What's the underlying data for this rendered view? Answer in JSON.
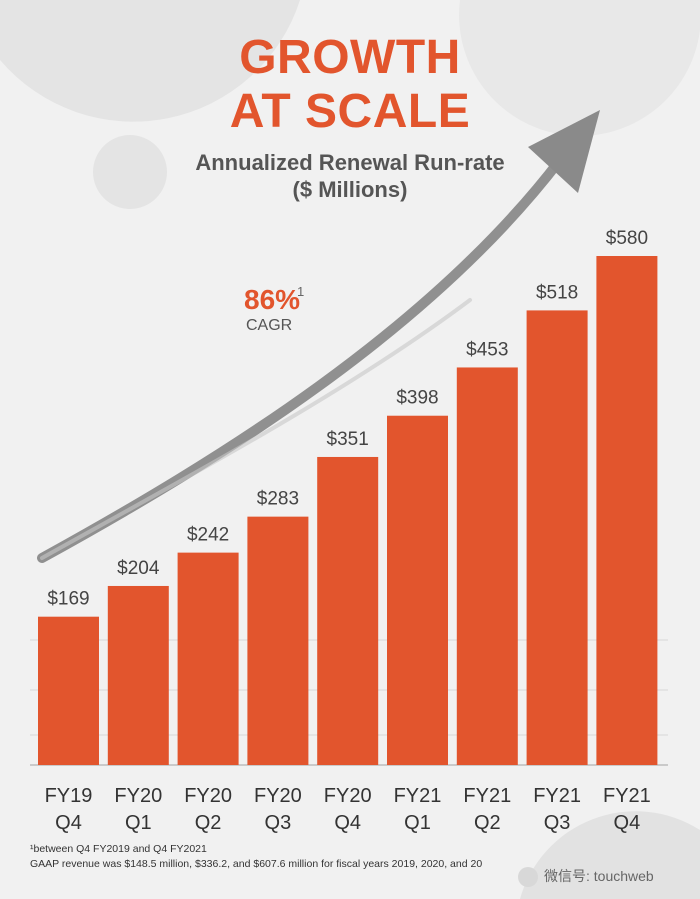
{
  "header": {
    "title_line1": "GROWTH",
    "title_line2": "AT SCALE",
    "subtitle_line1": "Annualized Renewal Run-rate",
    "subtitle_line2": "($ Millions)"
  },
  "annotation": {
    "cagr_value": "86%",
    "cagr_superscript": "1",
    "cagr_label": "CAGR"
  },
  "footnotes": {
    "line1": "¹between Q4 FY2019 and Q4 FY2021",
    "line2": "GAAP revenue was $148.5 million, $336.2, and $607.6 million for fiscal years 2019, 2020, and 20"
  },
  "watermark": {
    "text": "微信号: touchweb"
  },
  "colors": {
    "bar": "#e2552d",
    "accent": "#e2552d",
    "background": "#f1f1f1",
    "arrow": "#8a8a8a"
  },
  "chart_data": {
    "type": "bar",
    "categories": [
      [
        "FY19",
        "Q4"
      ],
      [
        "FY20",
        "Q1"
      ],
      [
        "FY20",
        "Q2"
      ],
      [
        "FY20",
        "Q3"
      ],
      [
        "FY20",
        "Q4"
      ],
      [
        "FY21",
        "Q1"
      ],
      [
        "FY21",
        "Q2"
      ],
      [
        "FY21",
        "Q3"
      ],
      [
        "FY21",
        "Q4"
      ]
    ],
    "values": [
      169,
      204,
      242,
      283,
      351,
      398,
      453,
      518,
      580
    ],
    "data_labels": [
      "$169",
      "$204",
      "$242",
      "$283",
      "$351",
      "$398",
      "$453",
      "$518",
      "$580"
    ],
    "title": "Annualized Renewal Run-rate",
    "ylabel": "($ Millions)",
    "ylim": [
      0,
      580
    ],
    "grid": "horizontal"
  }
}
